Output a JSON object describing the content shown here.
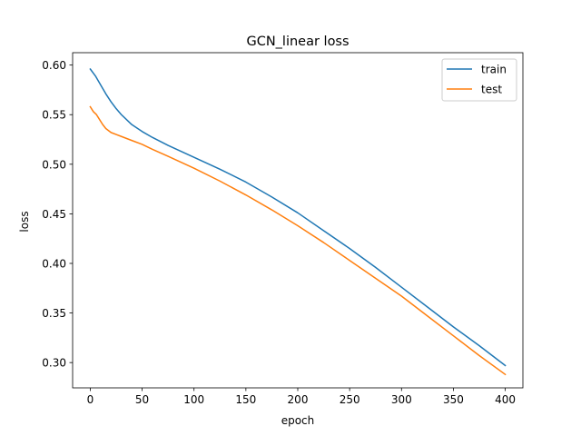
{
  "chart_data": {
    "type": "line",
    "title": "GCN_linear loss",
    "xlabel": "epoch",
    "ylabel": "loss",
    "xlim": [
      -17,
      417
    ],
    "ylim": [
      0.2745,
      0.6125
    ],
    "xticks": [
      0,
      50,
      100,
      150,
      200,
      250,
      300,
      350,
      400
    ],
    "yticks": [
      0.3,
      0.35,
      0.4,
      0.45,
      0.5,
      0.55,
      0.6
    ],
    "ytick_labels": [
      "0.30",
      "0.35",
      "0.40",
      "0.45",
      "0.50",
      "0.55",
      "0.60"
    ],
    "grid": false,
    "legend_position": "top-right",
    "series": [
      {
        "name": "train",
        "color": "#1f77b4",
        "x": [
          0,
          5,
          10,
          15,
          20,
          25,
          30,
          40,
          50,
          60,
          75,
          100,
          125,
          150,
          175,
          200,
          225,
          250,
          275,
          300,
          325,
          350,
          375,
          400
        ],
        "y": [
          0.596,
          0.589,
          0.58,
          0.571,
          0.563,
          0.556,
          0.55,
          0.54,
          0.533,
          0.527,
          0.519,
          0.507,
          0.495,
          0.482,
          0.467,
          0.451,
          0.433,
          0.415,
          0.396,
          0.376,
          0.356,
          0.336,
          0.317,
          0.297
        ]
      },
      {
        "name": "test",
        "color": "#ff7f0e",
        "x": [
          0,
          3,
          6,
          9,
          12,
          15,
          20,
          25,
          30,
          40,
          50,
          60,
          75,
          100,
          125,
          150,
          175,
          200,
          225,
          250,
          275,
          300,
          325,
          350,
          375,
          400
        ],
        "y": [
          0.558,
          0.553,
          0.55,
          0.545,
          0.54,
          0.536,
          0.532,
          0.53,
          0.528,
          0.524,
          0.52,
          0.515,
          0.508,
          0.496,
          0.483,
          0.469,
          0.454,
          0.438,
          0.421,
          0.403,
          0.385,
          0.367,
          0.347,
          0.327,
          0.307,
          0.288
        ]
      }
    ]
  }
}
